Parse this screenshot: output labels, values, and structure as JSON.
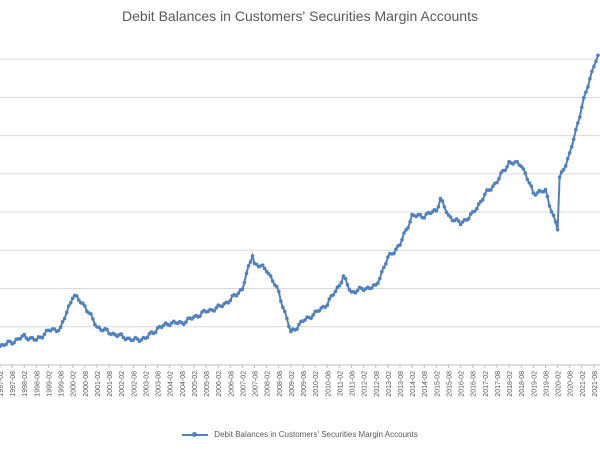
{
  "chart_data": {
    "type": "line",
    "title": "Debit Balances in Customers' Securities Margin Accounts",
    "series": [
      {
        "name": "Debit Balances in Customers' Securities Margin Accounts",
        "color": "#4f81bd"
      }
    ],
    "x": [
      "1997-02",
      "1997-08",
      "1998-02",
      "1998-08",
      "1999-02",
      "1999-08",
      "2000-02",
      "2000-03",
      "2000-08",
      "2001-02",
      "2001-08",
      "2002-02",
      "2002-08",
      "2003-02",
      "2003-08",
      "2004-02",
      "2004-08",
      "2005-02",
      "2005-08",
      "2006-02",
      "2006-08",
      "2007-02",
      "2007-07",
      "2007-08",
      "2008-02",
      "2008-08",
      "2009-02",
      "2009-08",
      "2010-02",
      "2010-08",
      "2011-02",
      "2011-04",
      "2011-08",
      "2012-02",
      "2012-08",
      "2013-02",
      "2013-08",
      "2014-02",
      "2014-08",
      "2015-02",
      "2015-04",
      "2015-08",
      "2016-02",
      "2016-08",
      "2017-02",
      "2017-08",
      "2018-02",
      "2018-08",
      "2019-02",
      "2019-08",
      "2020-02",
      "2020-03",
      "2020-08",
      "2021-02",
      "2021-08",
      "2021-10"
    ],
    "values": [
      1.0,
      1.2,
      1.5,
      1.3,
      1.8,
      1.9,
      3.6,
      3.6,
      3.1,
      2.0,
      1.7,
      1.5,
      1.3,
      1.4,
      1.9,
      2.2,
      2.2,
      2.5,
      2.8,
      3.0,
      3.4,
      4.0,
      5.8,
      5.3,
      5.0,
      3.8,
      1.7,
      2.3,
      2.7,
      3.2,
      4.2,
      4.6,
      3.8,
      4.0,
      4.1,
      5.6,
      6.3,
      7.8,
      7.8,
      8.1,
      8.7,
      7.8,
      7.4,
      7.9,
      8.9,
      9.6,
      10.6,
      10.5,
      9.0,
      9.1,
      7.1,
      9.8,
      11.0,
      13.5,
      15.7,
      16.2
    ],
    "ylim": [
      0,
      17
    ],
    "grid": true,
    "legend": "bottom",
    "x_tick_labels": [
      "1997-02",
      "1997-08",
      "1998-02",
      "1998-08",
      "1999-02",
      "1999-08",
      "2000-02",
      "2000-08",
      "2001-02",
      "2001-08",
      "2002-02",
      "2002-08",
      "2003-02",
      "2003-08",
      "2004-02",
      "2004-08",
      "2005-02",
      "2005-08",
      "2006-02",
      "2006-08",
      "2007-02",
      "2007-08",
      "2008-02",
      "2008-08",
      "2009-02",
      "2009-08",
      "2010-02",
      "2010-08",
      "2011-02",
      "2011-08",
      "2012-02",
      "2012-08",
      "2013-02",
      "2013-08",
      "2014-02",
      "2014-08",
      "2015-02",
      "2015-08",
      "2016-02",
      "2016-08",
      "2017-02",
      "2017-08",
      "2018-02",
      "2018-08",
      "2019-02",
      "2019-08",
      "2020-02",
      "2020-08",
      "2021-02",
      "2021-08"
    ]
  }
}
